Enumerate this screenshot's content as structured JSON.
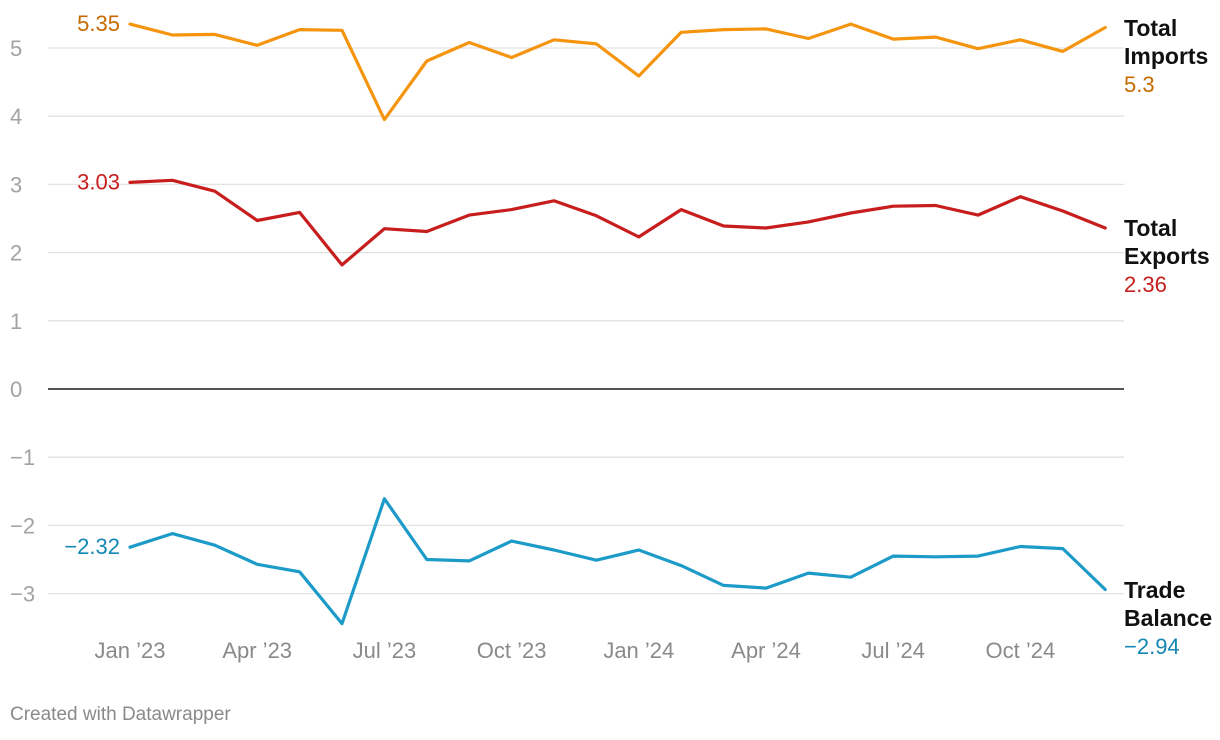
{
  "chart_data": {
    "type": "line",
    "y_axis": {
      "ylim": [
        -3.5,
        5.5
      ],
      "ticks": [
        5,
        4,
        3,
        2,
        1,
        0,
        -1,
        -2,
        -3
      ],
      "tick_labels": [
        "5",
        "4",
        "3",
        "2",
        "1",
        "0",
        "−1",
        "−2",
        "−3"
      ]
    },
    "x_axis": {
      "range": [
        "2023-01",
        "2024-12"
      ],
      "ticks": [
        {
          "month": "2023-01",
          "label": "Jan ’23"
        },
        {
          "month": "2023-04",
          "label": "Apr ’23"
        },
        {
          "month": "2023-07",
          "label": "Jul ’23"
        },
        {
          "month": "2023-10",
          "label": "Oct ’23"
        },
        {
          "month": "2024-01",
          "label": "Jan ’24"
        },
        {
          "month": "2024-04",
          "label": "Apr ’24"
        },
        {
          "month": "2024-07",
          "label": "Jul ’24"
        },
        {
          "month": "2024-10",
          "label": "Oct ’24"
        }
      ]
    },
    "months": [
      "2023-01",
      "2023-02",
      "2023-03",
      "2023-04",
      "2023-05",
      "2023-06",
      "2023-07",
      "2023-08",
      "2023-09",
      "2023-10",
      "2023-11",
      "2023-12",
      "2024-01",
      "2024-02",
      "2024-03",
      "2024-04",
      "2024-05",
      "2024-06",
      "2024-07",
      "2024-08",
      "2024-09",
      "2024-10",
      "2024-11",
      "2024-12"
    ],
    "series": [
      {
        "key": "imports",
        "name_line1": "Total",
        "name_line2": "Imports",
        "color": "#f5950f",
        "label_color": "#c76a00",
        "start_label": "5.35",
        "end_label": "5.3",
        "values": [
          5.35,
          5.19,
          5.2,
          5.04,
          5.27,
          5.26,
          3.95,
          4.81,
          5.08,
          4.86,
          5.12,
          5.06,
          4.59,
          5.23,
          5.27,
          5.28,
          5.14,
          5.35,
          5.13,
          5.16,
          4.99,
          5.12,
          4.95,
          5.3
        ]
      },
      {
        "key": "exports",
        "name_line1": "Total",
        "name_line2": "Exports",
        "color": "#c71e1d",
        "label_color": "#c71e1d",
        "start_label": "3.03",
        "end_label": "2.36",
        "values": [
          3.03,
          3.06,
          2.9,
          2.47,
          2.59,
          1.82,
          2.35,
          2.31,
          2.55,
          2.63,
          2.76,
          2.54,
          2.23,
          2.63,
          2.39,
          2.36,
          2.45,
          2.58,
          2.68,
          2.69,
          2.55,
          2.82,
          2.61,
          2.36
        ]
      },
      {
        "key": "balance",
        "name_line1": "Trade",
        "name_line2": "Balance",
        "color": "#1d9bc8",
        "label_color": "#1487b4",
        "start_label": "−2.32",
        "end_label": "−2.94",
        "values": [
          -2.32,
          -2.12,
          -2.29,
          -2.57,
          -2.68,
          -3.44,
          -1.61,
          -2.5,
          -2.52,
          -2.23,
          -2.36,
          -2.51,
          -2.36,
          -2.59,
          -2.88,
          -2.92,
          -2.7,
          -2.76,
          -2.45,
          -2.46,
          -2.45,
          -2.31,
          -2.34,
          -2.94
        ]
      }
    ]
  },
  "footer": {
    "credit": "Created with Datawrapper"
  }
}
